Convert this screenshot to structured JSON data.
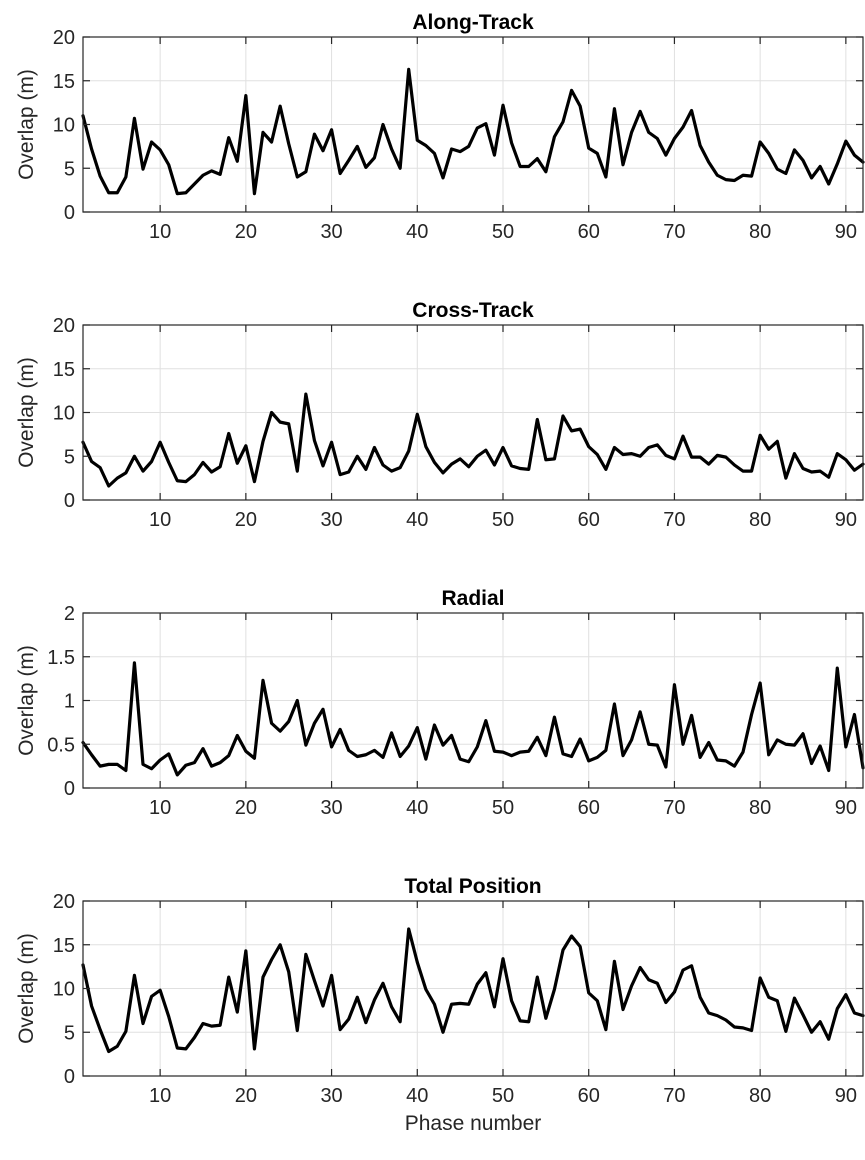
{
  "chart_data": [
    {
      "type": "line",
      "title": "Along-Track",
      "xlabel": "",
      "ylabel": "Overlap (m)",
      "xlim": [
        1,
        92
      ],
      "ylim": [
        0,
        20
      ],
      "xticks": [
        10,
        20,
        30,
        40,
        50,
        60,
        70,
        80,
        90
      ],
      "yticks": [
        0,
        5,
        10,
        15,
        20
      ],
      "grid": true,
      "color": "#000000",
      "x": [
        1,
        2,
        3,
        4,
        5,
        6,
        7,
        8,
        9,
        10,
        11,
        12,
        13,
        14,
        15,
        16,
        17,
        18,
        19,
        20,
        21,
        22,
        23,
        24,
        25,
        26,
        27,
        28,
        29,
        30,
        31,
        32,
        33,
        34,
        35,
        36,
        37,
        38,
        39,
        40,
        41,
        42,
        43,
        44,
        45,
        46,
        47,
        48,
        49,
        50,
        51,
        52,
        53,
        54,
        55,
        56,
        57,
        58,
        59,
        60,
        61,
        62,
        63,
        64,
        65,
        66,
        67,
        68,
        69,
        70,
        71,
        72,
        73,
        74,
        75,
        76,
        77,
        78,
        79,
        80,
        81,
        82,
        83,
        84,
        85,
        86,
        87,
        88,
        89,
        90,
        91,
        92
      ],
      "values": [
        11.0,
        7.2,
        4.1,
        2.2,
        2.2,
        4.0,
        10.7,
        4.9,
        8.0,
        7.1,
        5.4,
        2.1,
        2.2,
        3.2,
        4.2,
        4.7,
        4.3,
        8.5,
        5.8,
        13.3,
        2.1,
        9.1,
        8.0,
        12.1,
        7.8,
        4.0,
        4.6,
        8.9,
        7.0,
        9.4,
        4.4,
        5.9,
        7.5,
        5.1,
        6.2,
        10.0,
        7.2,
        5.0,
        16.3,
        8.2,
        7.6,
        6.7,
        3.9,
        7.2,
        6.9,
        7.5,
        9.6,
        10.1,
        6.5,
        12.2,
        7.9,
        5.2,
        5.2,
        6.1,
        4.6,
        8.6,
        10.3,
        13.9,
        12.1,
        7.3,
        6.7,
        4.0,
        11.8,
        5.4,
        9.1,
        11.5,
        9.1,
        8.4,
        6.5,
        8.4,
        9.7,
        11.6,
        7.6,
        5.7,
        4.2,
        3.7,
        3.6,
        4.2,
        4.1,
        8.0,
        6.7,
        4.9,
        4.4,
        7.1,
        5.9,
        3.9,
        5.2,
        3.2,
        5.5,
        8.1,
        6.5,
        5.7
      ]
    },
    {
      "type": "line",
      "title": "Cross-Track",
      "xlabel": "",
      "ylabel": "Overlap (m)",
      "xlim": [
        1,
        92
      ],
      "ylim": [
        0,
        20
      ],
      "xticks": [
        10,
        20,
        30,
        40,
        50,
        60,
        70,
        80,
        90
      ],
      "yticks": [
        0,
        5,
        10,
        15,
        20
      ],
      "grid": true,
      "color": "#000000",
      "x": [
        1,
        2,
        3,
        4,
        5,
        6,
        7,
        8,
        9,
        10,
        11,
        12,
        13,
        14,
        15,
        16,
        17,
        18,
        19,
        20,
        21,
        22,
        23,
        24,
        25,
        26,
        27,
        28,
        29,
        30,
        31,
        32,
        33,
        34,
        35,
        36,
        37,
        38,
        39,
        40,
        41,
        42,
        43,
        44,
        45,
        46,
        47,
        48,
        49,
        50,
        51,
        52,
        53,
        54,
        55,
        56,
        57,
        58,
        59,
        60,
        61,
        62,
        63,
        64,
        65,
        66,
        67,
        68,
        69,
        70,
        71,
        72,
        73,
        74,
        75,
        76,
        77,
        78,
        79,
        80,
        81,
        82,
        83,
        84,
        85,
        86,
        87,
        88,
        89,
        90,
        91,
        92
      ],
      "values": [
        6.6,
        4.4,
        3.7,
        1.6,
        2.5,
        3.1,
        5.0,
        3.3,
        4.4,
        6.6,
        4.3,
        2.2,
        2.1,
        2.9,
        4.3,
        3.2,
        3.8,
        7.6,
        4.2,
        6.2,
        2.1,
        6.7,
        10.0,
        8.9,
        8.7,
        3.3,
        12.1,
        6.8,
        3.9,
        6.6,
        2.9,
        3.2,
        5.0,
        3.5,
        6.0,
        4.0,
        3.3,
        3.7,
        5.6,
        9.8,
        6.1,
        4.3,
        3.1,
        4.1,
        4.7,
        3.8,
        5.0,
        5.7,
        4.0,
        6.0,
        3.9,
        3.6,
        3.5,
        9.2,
        4.6,
        4.7,
        9.6,
        7.9,
        8.1,
        6.1,
        5.2,
        3.5,
        6.0,
        5.2,
        5.3,
        5.0,
        6.0,
        6.3,
        5.1,
        4.7,
        7.3,
        4.9,
        4.9,
        4.1,
        5.1,
        4.9,
        4.0,
        3.3,
        3.3,
        7.4,
        5.8,
        6.7,
        2.5,
        5.3,
        3.6,
        3.2,
        3.3,
        2.6,
        5.3,
        4.6,
        3.4,
        4.1
      ]
    },
    {
      "type": "line",
      "title": "Radial",
      "xlabel": "",
      "ylabel": "Overlap (m)",
      "xlim": [
        1,
        92
      ],
      "ylim": [
        0,
        2
      ],
      "xticks": [
        10,
        20,
        30,
        40,
        50,
        60,
        70,
        80,
        90
      ],
      "yticks": [
        0,
        0.5,
        1,
        1.5,
        2
      ],
      "grid": true,
      "color": "#000000",
      "x": [
        1,
        2,
        3,
        4,
        5,
        6,
        7,
        8,
        9,
        10,
        11,
        12,
        13,
        14,
        15,
        16,
        17,
        18,
        19,
        20,
        21,
        22,
        23,
        24,
        25,
        26,
        27,
        28,
        29,
        30,
        31,
        32,
        33,
        34,
        35,
        36,
        37,
        38,
        39,
        40,
        41,
        42,
        43,
        44,
        45,
        46,
        47,
        48,
        49,
        50,
        51,
        52,
        53,
        54,
        55,
        56,
        57,
        58,
        59,
        60,
        61,
        62,
        63,
        64,
        65,
        66,
        67,
        68,
        69,
        70,
        71,
        72,
        73,
        74,
        75,
        76,
        77,
        78,
        79,
        80,
        81,
        82,
        83,
        84,
        85,
        86,
        87,
        88,
        89,
        90,
        91,
        92
      ],
      "values": [
        0.52,
        0.38,
        0.25,
        0.27,
        0.27,
        0.2,
        1.43,
        0.27,
        0.22,
        0.32,
        0.39,
        0.15,
        0.26,
        0.29,
        0.45,
        0.25,
        0.29,
        0.37,
        0.6,
        0.42,
        0.34,
        1.23,
        0.74,
        0.65,
        0.76,
        1.0,
        0.49,
        0.74,
        0.9,
        0.47,
        0.67,
        0.43,
        0.36,
        0.38,
        0.43,
        0.35,
        0.63,
        0.36,
        0.48,
        0.69,
        0.33,
        0.72,
        0.49,
        0.6,
        0.33,
        0.3,
        0.47,
        0.77,
        0.42,
        0.41,
        0.37,
        0.41,
        0.42,
        0.58,
        0.37,
        0.81,
        0.39,
        0.36,
        0.56,
        0.31,
        0.35,
        0.43,
        0.96,
        0.37,
        0.55,
        0.87,
        0.5,
        0.49,
        0.24,
        1.18,
        0.5,
        0.83,
        0.35,
        0.52,
        0.32,
        0.31,
        0.25,
        0.41,
        0.84,
        1.2,
        0.38,
        0.55,
        0.5,
        0.49,
        0.62,
        0.28,
        0.48,
        0.2,
        1.37,
        0.47,
        0.84,
        0.23
      ]
    },
    {
      "type": "line",
      "title": "Total Position",
      "xlabel": "Phase number",
      "ylabel": "Overlap (m)",
      "xlim": [
        1,
        92
      ],
      "ylim": [
        0,
        20
      ],
      "xticks": [
        10,
        20,
        30,
        40,
        50,
        60,
        70,
        80,
        90
      ],
      "yticks": [
        0,
        5,
        10,
        15,
        20
      ],
      "grid": true,
      "color": "#000000",
      "x": [
        1,
        2,
        3,
        4,
        5,
        6,
        7,
        8,
        9,
        10,
        11,
        12,
        13,
        14,
        15,
        16,
        17,
        18,
        19,
        20,
        21,
        22,
        23,
        24,
        25,
        26,
        27,
        28,
        29,
        30,
        31,
        32,
        33,
        34,
        35,
        36,
        37,
        38,
        39,
        40,
        41,
        42,
        43,
        44,
        45,
        46,
        47,
        48,
        49,
        50,
        51,
        52,
        53,
        54,
        55,
        56,
        57,
        58,
        59,
        60,
        61,
        62,
        63,
        64,
        65,
        66,
        67,
        68,
        69,
        70,
        71,
        72,
        73,
        74,
        75,
        76,
        77,
        78,
        79,
        80,
        81,
        82,
        83,
        84,
        85,
        86,
        87,
        88,
        89,
        90,
        91,
        92
      ],
      "values": [
        12.7,
        8.0,
        5.3,
        2.8,
        3.4,
        5.1,
        11.5,
        6.0,
        9.1,
        9.8,
        6.8,
        3.2,
        3.1,
        4.4,
        6.0,
        5.7,
        5.8,
        11.3,
        7.3,
        14.3,
        3.1,
        11.3,
        13.3,
        15.0,
        11.9,
        5.2,
        13.9,
        10.9,
        8.0,
        11.5,
        5.3,
        6.5,
        9.0,
        6.1,
        8.7,
        10.6,
        7.9,
        6.2,
        16.8,
        13.0,
        9.9,
        8.2,
        5.0,
        8.2,
        8.3,
        8.2,
        10.5,
        11.8,
        7.9,
        13.4,
        8.6,
        6.3,
        6.2,
        11.3,
        6.6,
        9.9,
        14.4,
        16.0,
        14.8,
        9.5,
        8.6,
        5.3,
        13.1,
        7.6,
        10.3,
        12.4,
        11.0,
        10.6,
        8.4,
        9.6,
        12.1,
        12.6,
        9.0,
        7.2,
        6.9,
        6.4,
        5.6,
        5.5,
        5.2,
        11.2,
        9.0,
        8.6,
        5.1,
        8.9,
        7.0,
        5.0,
        6.2,
        4.2,
        7.7,
        9.3,
        7.2,
        6.9
      ]
    }
  ]
}
